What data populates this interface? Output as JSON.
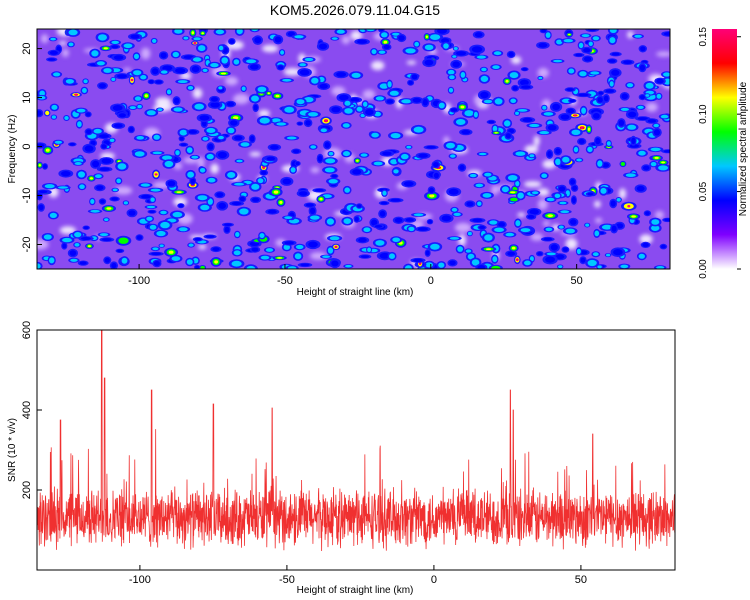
{
  "title": "KOM5.2026.079.11.04.G15",
  "chart_data": [
    {
      "type": "heatmap",
      "xlabel": "Height of straight line (km)",
      "ylabel": "Frequency (Hz)",
      "xlim": [
        -135,
        82
      ],
      "ylim": [
        -25,
        24
      ],
      "xticks": [
        -100,
        -50,
        0,
        50
      ],
      "yticks": [
        -20,
        -10,
        0,
        10,
        20
      ],
      "colorbar": {
        "label": "Normalized spectral amplitude",
        "range": [
          0,
          0.155
        ],
        "ticks": [
          0.0,
          0.05,
          0.1,
          0.15
        ],
        "tick_labels": [
          "0.00",
          "0.05",
          "0.10",
          "0.15"
        ],
        "colors": [
          "#ffffff",
          "#7f00ff",
          "#0000ff",
          "#00c8ff",
          "#00ff00",
          "#ffff00",
          "#ff0000",
          "#ff0077"
        ]
      },
      "field": {
        "description_level": "dense speckle",
        "background_level": 0.02,
        "typical_blob_level": 0.05,
        "max_level": 0.155,
        "blob_count": 850
      }
    },
    {
      "type": "line",
      "xlabel": "Height of straight line (km)",
      "ylabel": "SNR (10 * v/v)",
      "xlim": [
        -135,
        82
      ],
      "ylim": [
        0,
        600
      ],
      "xticks": [
        -100,
        -50,
        0,
        50
      ],
      "yticks": [
        200,
        400,
        600
      ],
      "color": "#f03030",
      "baseline_mean": 130,
      "noise_spread": 60,
      "spikes": [
        {
          "x": -113,
          "y": 600
        },
        {
          "x": -112,
          "y": 480
        },
        {
          "x": -96,
          "y": 450
        },
        {
          "x": -75,
          "y": 415
        },
        {
          "x": -127,
          "y": 375
        },
        {
          "x": -55,
          "y": 405
        },
        {
          "x": 26,
          "y": 450
        },
        {
          "x": 27,
          "y": 400
        },
        {
          "x": 54,
          "y": 340
        }
      ],
      "point_count": 2200
    }
  ]
}
